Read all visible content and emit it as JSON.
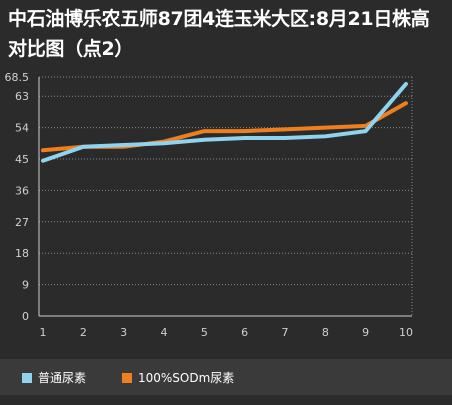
{
  "chart_data": {
    "type": "line",
    "title": "中石油博乐农五师87团4连玉米大区:8月21日株高对比图（点2）",
    "categories": [
      "1",
      "2",
      "3",
      "4",
      "5",
      "6",
      "7",
      "8",
      "9",
      "10"
    ],
    "yticks": [
      "0",
      "9",
      "18",
      "27",
      "36",
      "45",
      "54",
      "63",
      "68.5"
    ],
    "ylim": [
      0,
      68.5
    ],
    "grid": true,
    "legend_position": "bottom",
    "series": [
      {
        "name": "普通尿素",
        "color": "#8fd3ee",
        "values": [
          44.5,
          48.5,
          49,
          49.5,
          50.5,
          51,
          51,
          51.5,
          53,
          66.5
        ]
      },
      {
        "name": "100%SODm尿素",
        "color": "#ee7f1f",
        "values": [
          47.5,
          48.5,
          48.5,
          50,
          53,
          53,
          53.5,
          54,
          54.5,
          61
        ]
      }
    ]
  }
}
